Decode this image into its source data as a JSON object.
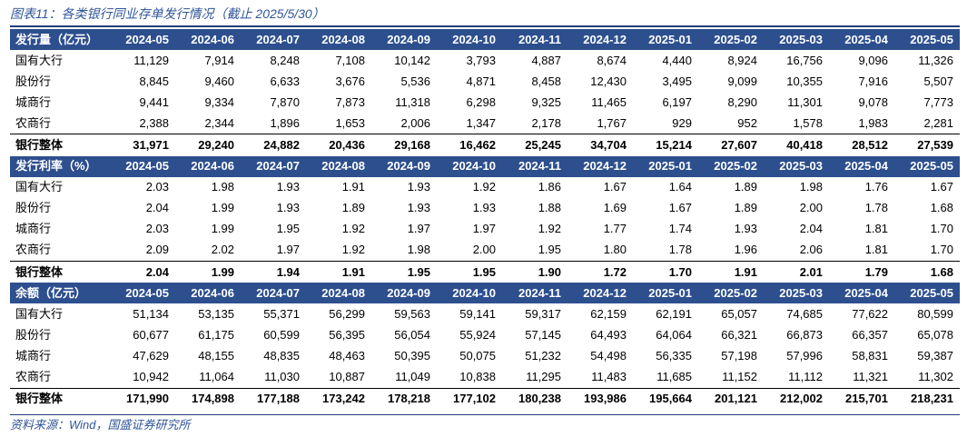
{
  "title": "图表11：各类银行同业存单发行情况（截止 2025/5/30）",
  "months": [
    "2024-05",
    "2024-06",
    "2024-07",
    "2024-08",
    "2024-09",
    "2024-10",
    "2024-11",
    "2024-12",
    "2025-01",
    "2025-02",
    "2025-03",
    "2025-04",
    "2025-05"
  ],
  "sections": [
    {
      "header": "发行量（亿元）",
      "rows": [
        {
          "label": "国有大行",
          "values": [
            "11,129",
            "7,914",
            "8,248",
            "7,108",
            "10,142",
            "3,793",
            "4,887",
            "8,674",
            "4,440",
            "8,924",
            "16,756",
            "9,096",
            "11,326"
          ]
        },
        {
          "label": "股份行",
          "values": [
            "8,845",
            "9,460",
            "6,633",
            "3,676",
            "5,536",
            "4,871",
            "8,458",
            "12,430",
            "3,495",
            "9,099",
            "10,355",
            "7,916",
            "5,507"
          ]
        },
        {
          "label": "城商行",
          "values": [
            "9,441",
            "9,334",
            "7,870",
            "7,873",
            "11,318",
            "6,298",
            "9,325",
            "11,465",
            "6,197",
            "8,290",
            "11,301",
            "9,078",
            "7,773"
          ]
        },
        {
          "label": "农商行",
          "values": [
            "2,388",
            "2,344",
            "1,896",
            "1,653",
            "2,006",
            "1,347",
            "2,178",
            "1,767",
            "929",
            "952",
            "1,578",
            "1,983",
            "2,281"
          ]
        }
      ],
      "total": {
        "label": "银行整体",
        "values": [
          "31,971",
          "29,240",
          "24,882",
          "20,436",
          "29,168",
          "16,462",
          "25,245",
          "34,704",
          "15,214",
          "27,607",
          "40,418",
          "28,512",
          "27,539"
        ]
      }
    },
    {
      "header": "发行利率（%）",
      "rows": [
        {
          "label": "国有大行",
          "values": [
            "2.03",
            "1.98",
            "1.93",
            "1.91",
            "1.93",
            "1.92",
            "1.86",
            "1.67",
            "1.64",
            "1.89",
            "1.98",
            "1.76",
            "1.67"
          ]
        },
        {
          "label": "股份行",
          "values": [
            "2.04",
            "1.99",
            "1.93",
            "1.89",
            "1.93",
            "1.93",
            "1.88",
            "1.69",
            "1.67",
            "1.89",
            "2.00",
            "1.78",
            "1.68"
          ]
        },
        {
          "label": "城商行",
          "values": [
            "2.03",
            "1.99",
            "1.95",
            "1.92",
            "1.97",
            "1.97",
            "1.92",
            "1.77",
            "1.74",
            "1.93",
            "2.04",
            "1.81",
            "1.70"
          ]
        },
        {
          "label": "农商行",
          "values": [
            "2.09",
            "2.02",
            "1.97",
            "1.92",
            "1.98",
            "2.00",
            "1.95",
            "1.80",
            "1.78",
            "1.96",
            "2.06",
            "1.81",
            "1.70"
          ]
        }
      ],
      "total": {
        "label": "银行整体",
        "values": [
          "2.04",
          "1.99",
          "1.94",
          "1.91",
          "1.95",
          "1.95",
          "1.90",
          "1.72",
          "1.70",
          "1.91",
          "2.01",
          "1.79",
          "1.68"
        ]
      }
    },
    {
      "header": "余额（亿元）",
      "rows": [
        {
          "label": "国有大行",
          "values": [
            "51,134",
            "53,135",
            "55,371",
            "56,299",
            "59,563",
            "59,141",
            "59,317",
            "62,159",
            "62,191",
            "65,057",
            "74,685",
            "77,622",
            "80,599"
          ]
        },
        {
          "label": "股份行",
          "values": [
            "60,677",
            "61,175",
            "60,599",
            "56,395",
            "56,054",
            "55,924",
            "57,145",
            "64,493",
            "64,064",
            "66,321",
            "66,873",
            "66,357",
            "65,078"
          ]
        },
        {
          "label": "城商行",
          "values": [
            "47,629",
            "48,155",
            "48,835",
            "48,463",
            "50,395",
            "50,075",
            "51,232",
            "54,498",
            "56,335",
            "57,198",
            "57,996",
            "58,831",
            "59,387"
          ]
        },
        {
          "label": "农商行",
          "values": [
            "10,942",
            "11,064",
            "11,030",
            "10,887",
            "11,049",
            "10,838",
            "11,295",
            "11,483",
            "11,685",
            "11,152",
            "11,112",
            "11,321",
            "11,302"
          ]
        }
      ],
      "total": {
        "label": "银行整体",
        "values": [
          "171,990",
          "174,898",
          "177,188",
          "173,242",
          "178,218",
          "177,102",
          "180,238",
          "193,986",
          "195,664",
          "201,121",
          "212,002",
          "215,701",
          "218,231"
        ]
      }
    }
  ],
  "source": "资料来源：Wind，国盛证券研究所",
  "colors": {
    "header_bg": "#2d4f8e",
    "title_text": "#2f5597",
    "rule": "#1f3d7a"
  }
}
